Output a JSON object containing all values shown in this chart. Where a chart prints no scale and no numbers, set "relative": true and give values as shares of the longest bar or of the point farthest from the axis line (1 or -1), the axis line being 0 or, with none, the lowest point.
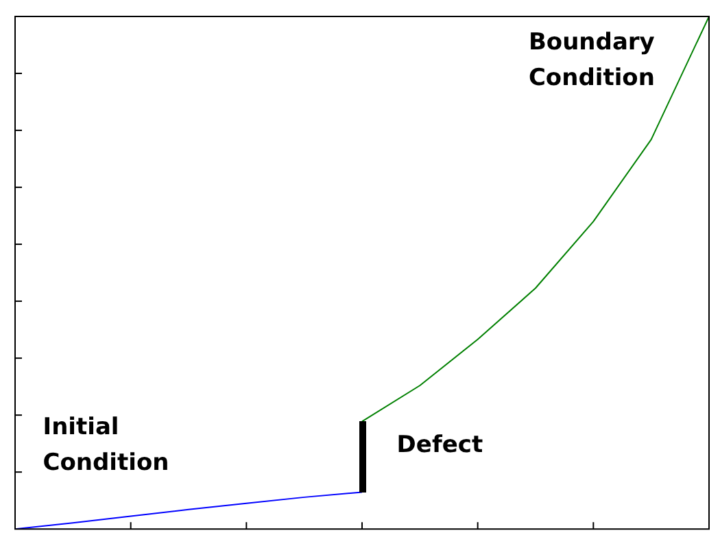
{
  "chart_data": {
    "type": "line",
    "relative": true,
    "grid": false,
    "legend": false,
    "marker": "none",
    "categories": [
      null,
      null,
      null,
      null,
      null,
      null,
      null,
      null,
      null,
      null,
      null,
      null,
      null
    ],
    "series": [
      {
        "color": "#0000ff",
        "values": [
          0,
          0.012,
          0.025,
          0.038,
          0.05,
          0.062,
          0.072,
          null,
          null,
          null,
          null,
          null,
          null
        ]
      },
      {
        "color": "#008000",
        "values": [
          null,
          null,
          null,
          null,
          null,
          null,
          0.21,
          0.28,
          0.37,
          0.47,
          0.6,
          0.76,
          1
        ]
      }
    ],
    "annotations": [
      "Initial Condition",
      "Defect",
      "Boundary Condition"
    ]
  }
}
